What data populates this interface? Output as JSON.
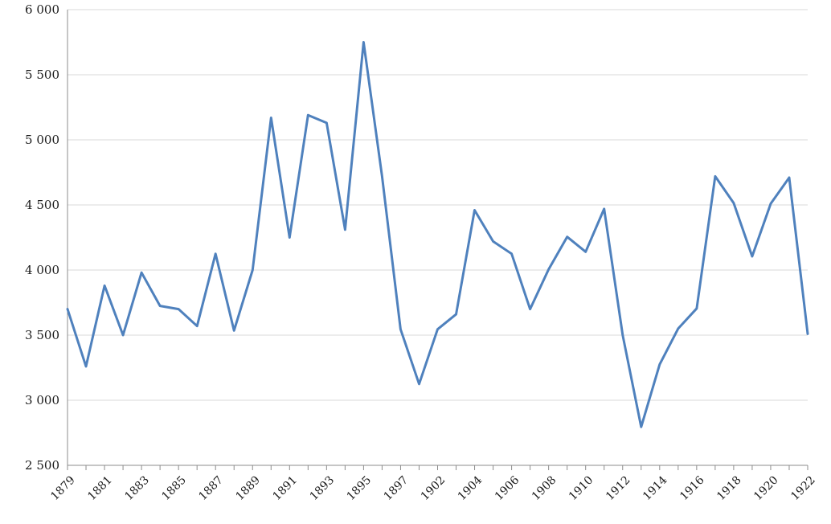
{
  "chart_data": {
    "type": "line",
    "title": "",
    "xlabel": "",
    "ylabel": "",
    "x": [
      1879,
      1880,
      1881,
      1882,
      1883,
      1884,
      1885,
      1886,
      1887,
      1888,
      1889,
      1890,
      1891,
      1892,
      1893,
      1894,
      1895,
      1896,
      1897,
      1901,
      1902,
      1903,
      1904,
      1905,
      1906,
      1907,
      1908,
      1909,
      1910,
      1911,
      1912,
      1913,
      1914,
      1915,
      1916,
      1917,
      1918,
      1919,
      1920,
      1921,
      1922
    ],
    "x_tick_labels": [
      "1879",
      "1881",
      "1883",
      "1885",
      "1887",
      "1889",
      "1891",
      "1893",
      "1895",
      "1897",
      "1902",
      "1904",
      "1906",
      "1908",
      "1910",
      "1912",
      "1914",
      "1916",
      "1918",
      "1920",
      "1922"
    ],
    "series": [
      {
        "color": "#4f81bd",
        "values": [
          3700,
          3260,
          3880,
          3500,
          3980,
          3725,
          3700,
          3570,
          4125,
          3535,
          4000,
          5170,
          4250,
          5190,
          5130,
          4310,
          5750,
          4720,
          3545,
          3125,
          3545,
          3660,
          4460,
          4220,
          4125,
          3700,
          4005,
          4255,
          4140,
          4470,
          3500,
          2795,
          3275,
          3550,
          3705,
          4720,
          4515,
          4105,
          4510,
          4710,
          3510
        ]
      }
    ],
    "ylim": [
      2500,
      6000
    ],
    "y_ticks": [
      {
        "value": 2500,
        "label": "2 500"
      },
      {
        "value": 3000,
        "label": "3 000"
      },
      {
        "value": 3500,
        "label": "3 500"
      },
      {
        "value": 4000,
        "label": "4 000"
      },
      {
        "value": 4500,
        "label": "4 500"
      },
      {
        "value": 5000,
        "label": "5 000"
      },
      {
        "value": 5500,
        "label": "5 500"
      },
      {
        "value": 6000,
        "label": "6 000"
      }
    ],
    "grid": true,
    "legend": "none"
  }
}
